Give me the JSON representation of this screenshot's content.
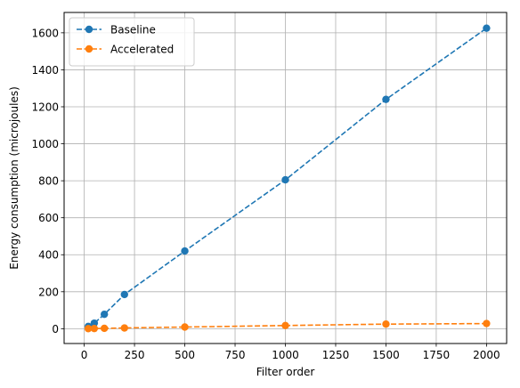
{
  "chart_data": {
    "type": "line",
    "xlabel": "Filter order",
    "ylabel": "Energy consumption (microjoules)",
    "xlim": [
      -100,
      2100
    ],
    "ylim": [
      -80,
      1710
    ],
    "xticks": [
      0,
      250,
      500,
      750,
      1000,
      1250,
      1500,
      1750,
      2000
    ],
    "yticks": [
      0,
      200,
      400,
      600,
      800,
      1000,
      1200,
      1400,
      1600
    ],
    "grid": true,
    "legend_position": "top-left",
    "series": [
      {
        "name": "Baseline",
        "color": "#1f77b4",
        "line_style": "dashed",
        "marker": "circle",
        "x": [
          20,
          50,
          100,
          200,
          500,
          1000,
          1500,
          2000
        ],
        "y": [
          12,
          30,
          78,
          185,
          420,
          805,
          1240,
          1625
        ]
      },
      {
        "name": "Accelerated",
        "color": "#ff7f0e",
        "line_style": "dashed",
        "marker": "circle",
        "x": [
          20,
          50,
          100,
          200,
          500,
          1000,
          1500,
          2000
        ],
        "y": [
          0.5,
          1,
          2,
          4,
          9,
          17,
          25,
          28
        ]
      }
    ]
  }
}
